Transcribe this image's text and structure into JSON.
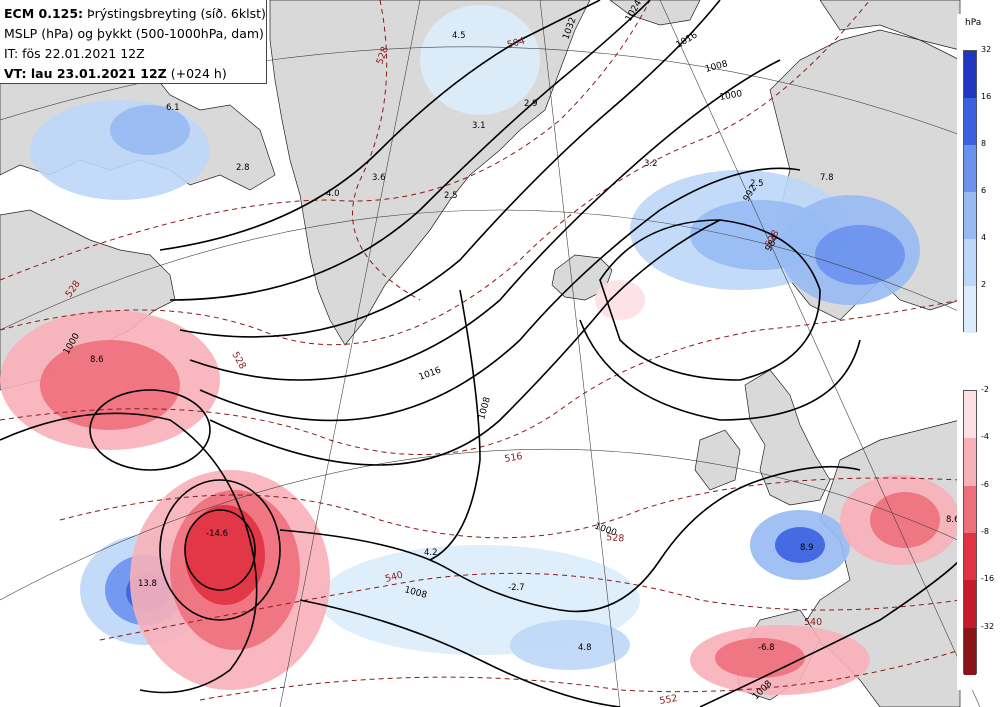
{
  "header": {
    "model": "ECM 0.125:",
    "title": "Þrýstingsbreyting (síð. 6klst)",
    "line2": "MSLP (hPa) og þykkt (500-1000hPa, dam)",
    "line3": "IT: fös 22.01.2021 12Z",
    "valid_label": "VT: lau 23.01.2021 12Z",
    "valid_offset": "(+024 h)"
  },
  "legend": {
    "unit": "hPa",
    "rise_ticks": [
      "32",
      "16",
      "8",
      "6",
      "4",
      "2"
    ],
    "rise_colors": [
      "#1f36c0",
      "#3b61e0",
      "#6a91ee",
      "#97baf3",
      "#bcd7f7",
      "#dcecfb"
    ],
    "fall_ticks": [
      "-2",
      "-4",
      "-6",
      "-8",
      "-16",
      "-32"
    ],
    "fall_colors": [
      "#fde0e4",
      "#f8b0b9",
      "#ee6f7c",
      "#e03443",
      "#c41a2a",
      "#8a1418"
    ]
  },
  "labels": {
    "isobars": [
      "1024",
      "1032",
      "1016",
      "1008",
      "1000",
      "992",
      "984",
      "1016",
      "1008",
      "1000",
      "1000",
      "1008",
      "1008"
    ],
    "thickness": [
      "528",
      "504",
      "528",
      "528",
      "516",
      "528",
      "540",
      "540",
      "552",
      "528"
    ],
    "pressure_change": [
      "6.1",
      "2.8",
      "4.5",
      "2.9",
      "3.1",
      "3.6",
      "2.5",
      "4.0",
      "3.2",
      "2.5",
      "7.8",
      "8.6",
      "-14.6",
      "13.8",
      "4.2",
      "-2.7",
      "4.8",
      "8.9",
      "-6.8",
      "8.6"
    ]
  },
  "colors": {
    "land": "#d9d9d9",
    "sea": "#ffffff",
    "isobar": "#000000",
    "thickness": "#8b1a1a"
  }
}
